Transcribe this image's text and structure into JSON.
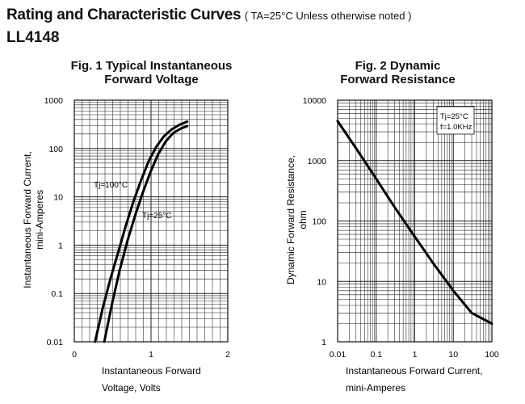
{
  "header": {
    "title": "Rating and Characteristic Curves",
    "note": "( TA=25°C Unless otherwise noted )",
    "part_number": "LL4148"
  },
  "chart_data": [
    {
      "type": "line",
      "title_line1": "Fig. 1 Typical Instantaneous",
      "title_line2": "Forward Voltage",
      "xlabel_line1": "Instantaneous Forward",
      "xlabel_line2": "Voltage, Volts",
      "ylabel_line1": "Instantaneous Forward Current,",
      "ylabel_line2": "mini-Amperes",
      "x_scale": "linear",
      "y_scale": "log",
      "xlim": [
        0,
        2
      ],
      "ylim": [
        0.01,
        1000
      ],
      "x_ticks": [
        "0",
        "1",
        "2"
      ],
      "y_ticks": [
        "0.01",
        "0.1",
        "1",
        "10",
        "100",
        "1000"
      ],
      "grid": true,
      "series": [
        {
          "name": "Tj=100°C",
          "x": [
            0.27,
            0.37,
            0.47,
            0.57,
            0.67,
            0.77,
            0.87,
            0.97,
            1.07,
            1.17,
            1.27,
            1.37,
            1.47
          ],
          "y": [
            0.01,
            0.05,
            0.2,
            0.7,
            2.5,
            8,
            22,
            55,
            110,
            180,
            250,
            310,
            360
          ]
        },
        {
          "name": "Tj=25°C",
          "x": [
            0.39,
            0.49,
            0.59,
            0.69,
            0.79,
            0.89,
            0.99,
            1.09,
            1.19,
            1.29,
            1.39,
            1.47
          ],
          "y": [
            0.01,
            0.06,
            0.3,
            1.2,
            4,
            12,
            32,
            75,
            140,
            210,
            260,
            290
          ]
        }
      ],
      "annotations": [
        "Tj=100°C",
        "Tj=25°C"
      ]
    },
    {
      "type": "line",
      "title_line1": "Fig. 2 Dynamic",
      "title_line2": "Forward Resistance",
      "xlabel_line1": "Instantaneous Forward Current,",
      "xlabel_line2": "mini-Amperes",
      "ylabel_line1": "Dynamic Forward Resistance,",
      "ylabel_line2": "ohm",
      "x_scale": "log",
      "y_scale": "log",
      "xlim": [
        0.01,
        100
      ],
      "ylim": [
        1,
        10000
      ],
      "x_ticks": [
        "0.01",
        "0.1",
        "1",
        "10",
        "100"
      ],
      "y_ticks": [
        "1",
        "10",
        "100",
        "1000",
        "10000"
      ],
      "grid": true,
      "series": [
        {
          "name": "",
          "x": [
            0.01,
            0.03,
            0.1,
            0.3,
            1,
            3,
            10,
            30,
            100
          ],
          "y": [
            4500,
            1600,
            500,
            170,
            55,
            20,
            7,
            3,
            2
          ]
        }
      ],
      "legend_box": {
        "line1": "Tj=25°C",
        "line2": "f=1.0KHz"
      }
    }
  ]
}
